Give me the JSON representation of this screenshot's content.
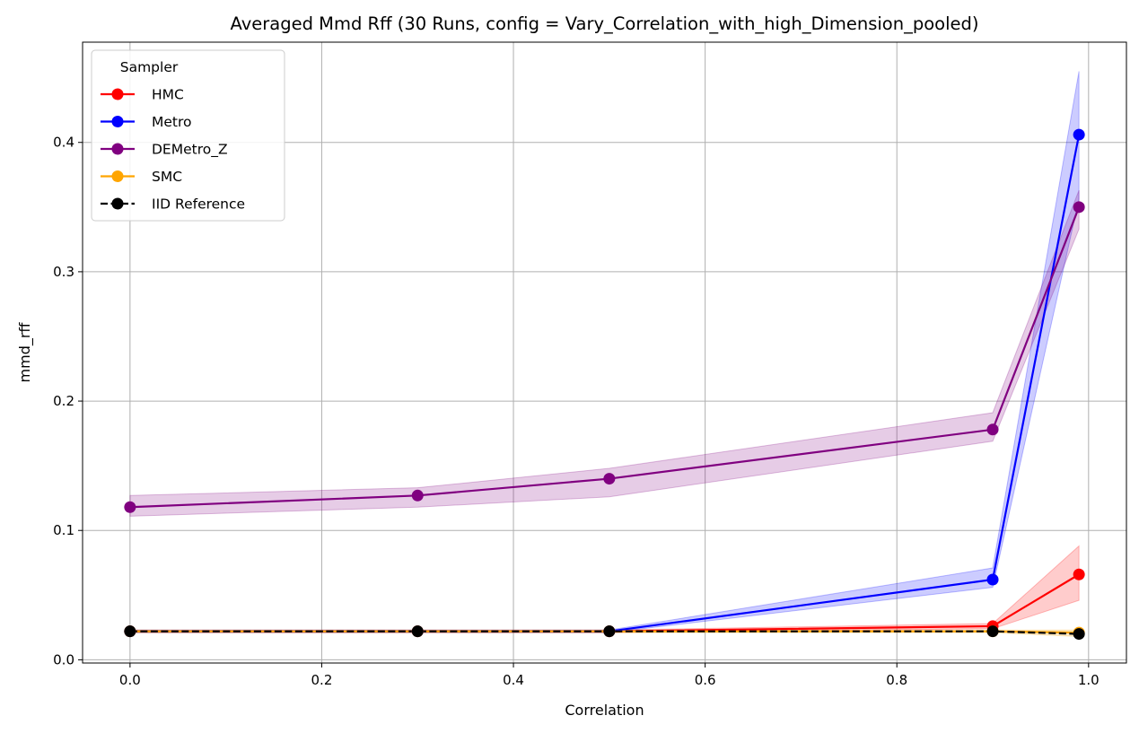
{
  "chart_data": {
    "type": "line",
    "title": "Averaged Mmd Rff (30 Runs, config = Vary_Correlation_with_high_Dimension_pooled)",
    "xlabel": "Correlation",
    "ylabel": "mmd_rff",
    "xlim": [
      -0.0495,
      1.0395
    ],
    "ylim": [
      -0.0025,
      0.4775
    ],
    "xticks": [
      0.0,
      0.2,
      0.4,
      0.6,
      0.8,
      1.0
    ],
    "xtick_labels": [
      "0.0",
      "0.2",
      "0.4",
      "0.6",
      "0.8",
      "1.0"
    ],
    "yticks": [
      0.0,
      0.1,
      0.2,
      0.3,
      0.4
    ],
    "ytick_labels": [
      "0.0",
      "0.1",
      "0.2",
      "0.3",
      "0.4"
    ],
    "grid": true,
    "legend": {
      "title": "Sampler",
      "position": "top-left"
    },
    "x": [
      0.0,
      0.3,
      0.5,
      0.9,
      0.99
    ],
    "series": [
      {
        "name": "HMC",
        "color": "#ff0000",
        "dash": "solid",
        "values": [
          0.022,
          0.022,
          0.022,
          0.026,
          0.066
        ],
        "band_low": [
          0.021,
          0.021,
          0.021,
          0.024,
          0.046
        ],
        "band_high": [
          0.023,
          0.023,
          0.023,
          0.028,
          0.088
        ]
      },
      {
        "name": "Metro",
        "color": "#0000ff",
        "dash": "solid",
        "values": [
          0.022,
          0.022,
          0.022,
          0.062,
          0.406
        ],
        "band_low": [
          0.021,
          0.021,
          0.021,
          0.056,
          0.356
        ],
        "band_high": [
          0.023,
          0.023,
          0.023,
          0.071,
          0.455
        ]
      },
      {
        "name": "DEMetro_Z",
        "color": "#800080",
        "dash": "solid",
        "values": [
          0.118,
          0.127,
          0.14,
          0.178,
          0.35
        ],
        "band_low": [
          0.111,
          0.118,
          0.126,
          0.169,
          0.333
        ],
        "band_high": [
          0.127,
          0.133,
          0.148,
          0.191,
          0.363
        ]
      },
      {
        "name": "SMC",
        "color": "#ffa500",
        "dash": "solid",
        "values": [
          0.022,
          0.022,
          0.022,
          0.022,
          0.021
        ],
        "band_low": [
          0.021,
          0.021,
          0.021,
          0.021,
          0.018
        ],
        "band_high": [
          0.023,
          0.023,
          0.023,
          0.023,
          0.023
        ]
      },
      {
        "name": "IID Reference",
        "color": "#000000",
        "dash": "dashed",
        "values": [
          0.022,
          0.022,
          0.022,
          0.022,
          0.02
        ]
      }
    ]
  }
}
